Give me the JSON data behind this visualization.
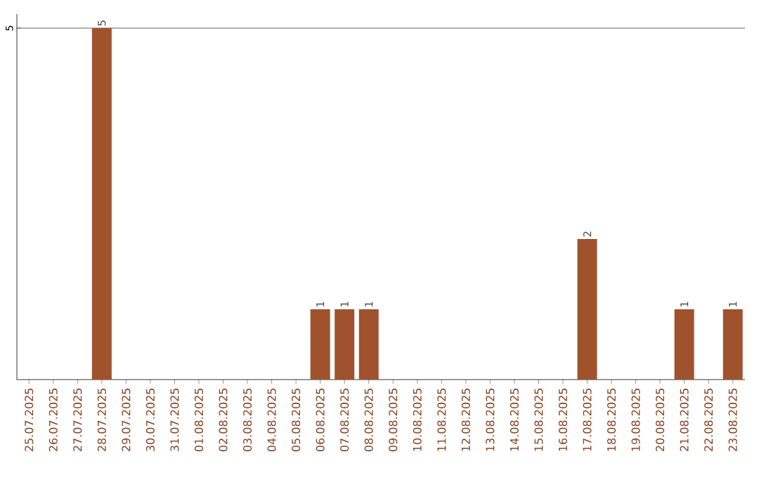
{
  "chart_data": {
    "type": "bar",
    "categories": [
      "25.07.2025",
      "26.07.2025",
      "27.07.2025",
      "28.07.2025",
      "29.07.2025",
      "30.07.2025",
      "31.07.2025",
      "01.08.2025",
      "02.08.2025",
      "03.08.2025",
      "04.08.2025",
      "05.08.2025",
      "06.08.2025",
      "07.08.2025",
      "08.08.2025",
      "09.08.2025",
      "10.08.2025",
      "11.08.2025",
      "12.08.2025",
      "13.08.2025",
      "14.08.2025",
      "15.08.2025",
      "16.08.2025",
      "17.08.2025",
      "18.08.2025",
      "19.08.2025",
      "20.08.2025",
      "21.08.2025",
      "22.08.2025",
      "23.08.2025"
    ],
    "values": [
      0,
      0,
      0,
      5,
      0,
      0,
      0,
      0,
      0,
      0,
      0,
      0,
      1,
      1,
      1,
      0,
      0,
      0,
      0,
      0,
      0,
      0,
      0,
      2,
      0,
      0,
      0,
      1,
      0,
      1
    ],
    "value_labels": [
      null,
      null,
      null,
      "5",
      null,
      null,
      null,
      null,
      null,
      null,
      null,
      null,
      "1",
      "1",
      "1",
      null,
      null,
      null,
      null,
      null,
      null,
      null,
      null,
      "2",
      null,
      null,
      null,
      "1",
      null,
      "1"
    ],
    "color": "#a0522d",
    "ylim": [
      0,
      5.2
    ],
    "yticks": [
      5
    ],
    "grid": "y"
  }
}
